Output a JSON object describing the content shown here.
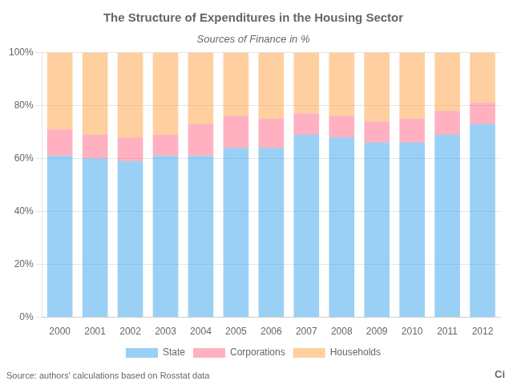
{
  "chart_data": {
    "type": "bar",
    "title": "The Structure of Expenditures in the Housing Sector",
    "subtitle": "Sources of Finance in %",
    "categories": [
      "2000",
      "2001",
      "2002",
      "2003",
      "2004",
      "2005",
      "2006",
      "2007",
      "2008",
      "2009",
      "2010",
      "2011",
      "2012"
    ],
    "series": [
      {
        "name": "State",
        "values": [
          61,
          60,
          59,
          61,
          61,
          64,
          64,
          69,
          68,
          66,
          66,
          69,
          73
        ]
      },
      {
        "name": "Corporations",
        "values": [
          10,
          9,
          9,
          8,
          12,
          12,
          11,
          8,
          8,
          8,
          9,
          9,
          8
        ]
      },
      {
        "name": "Households",
        "values": [
          29,
          31,
          32,
          31,
          27,
          24,
          25,
          23,
          24,
          26,
          25,
          22,
          19
        ]
      }
    ],
    "stacked": true,
    "ylim": [
      0,
      100
    ],
    "yticks": [
      {
        "value": 0,
        "label": "0%"
      },
      {
        "value": 20,
        "label": "20%"
      },
      {
        "value": 40,
        "label": "40%"
      },
      {
        "value": 60,
        "label": "60%"
      },
      {
        "value": 80,
        "label": "80%"
      },
      {
        "value": 100,
        "label": "100%"
      }
    ],
    "grid": true,
    "legend": "bottom",
    "annotations": [
      "Source: authors' calculations based on Rosstat data",
      "Ci"
    ]
  }
}
